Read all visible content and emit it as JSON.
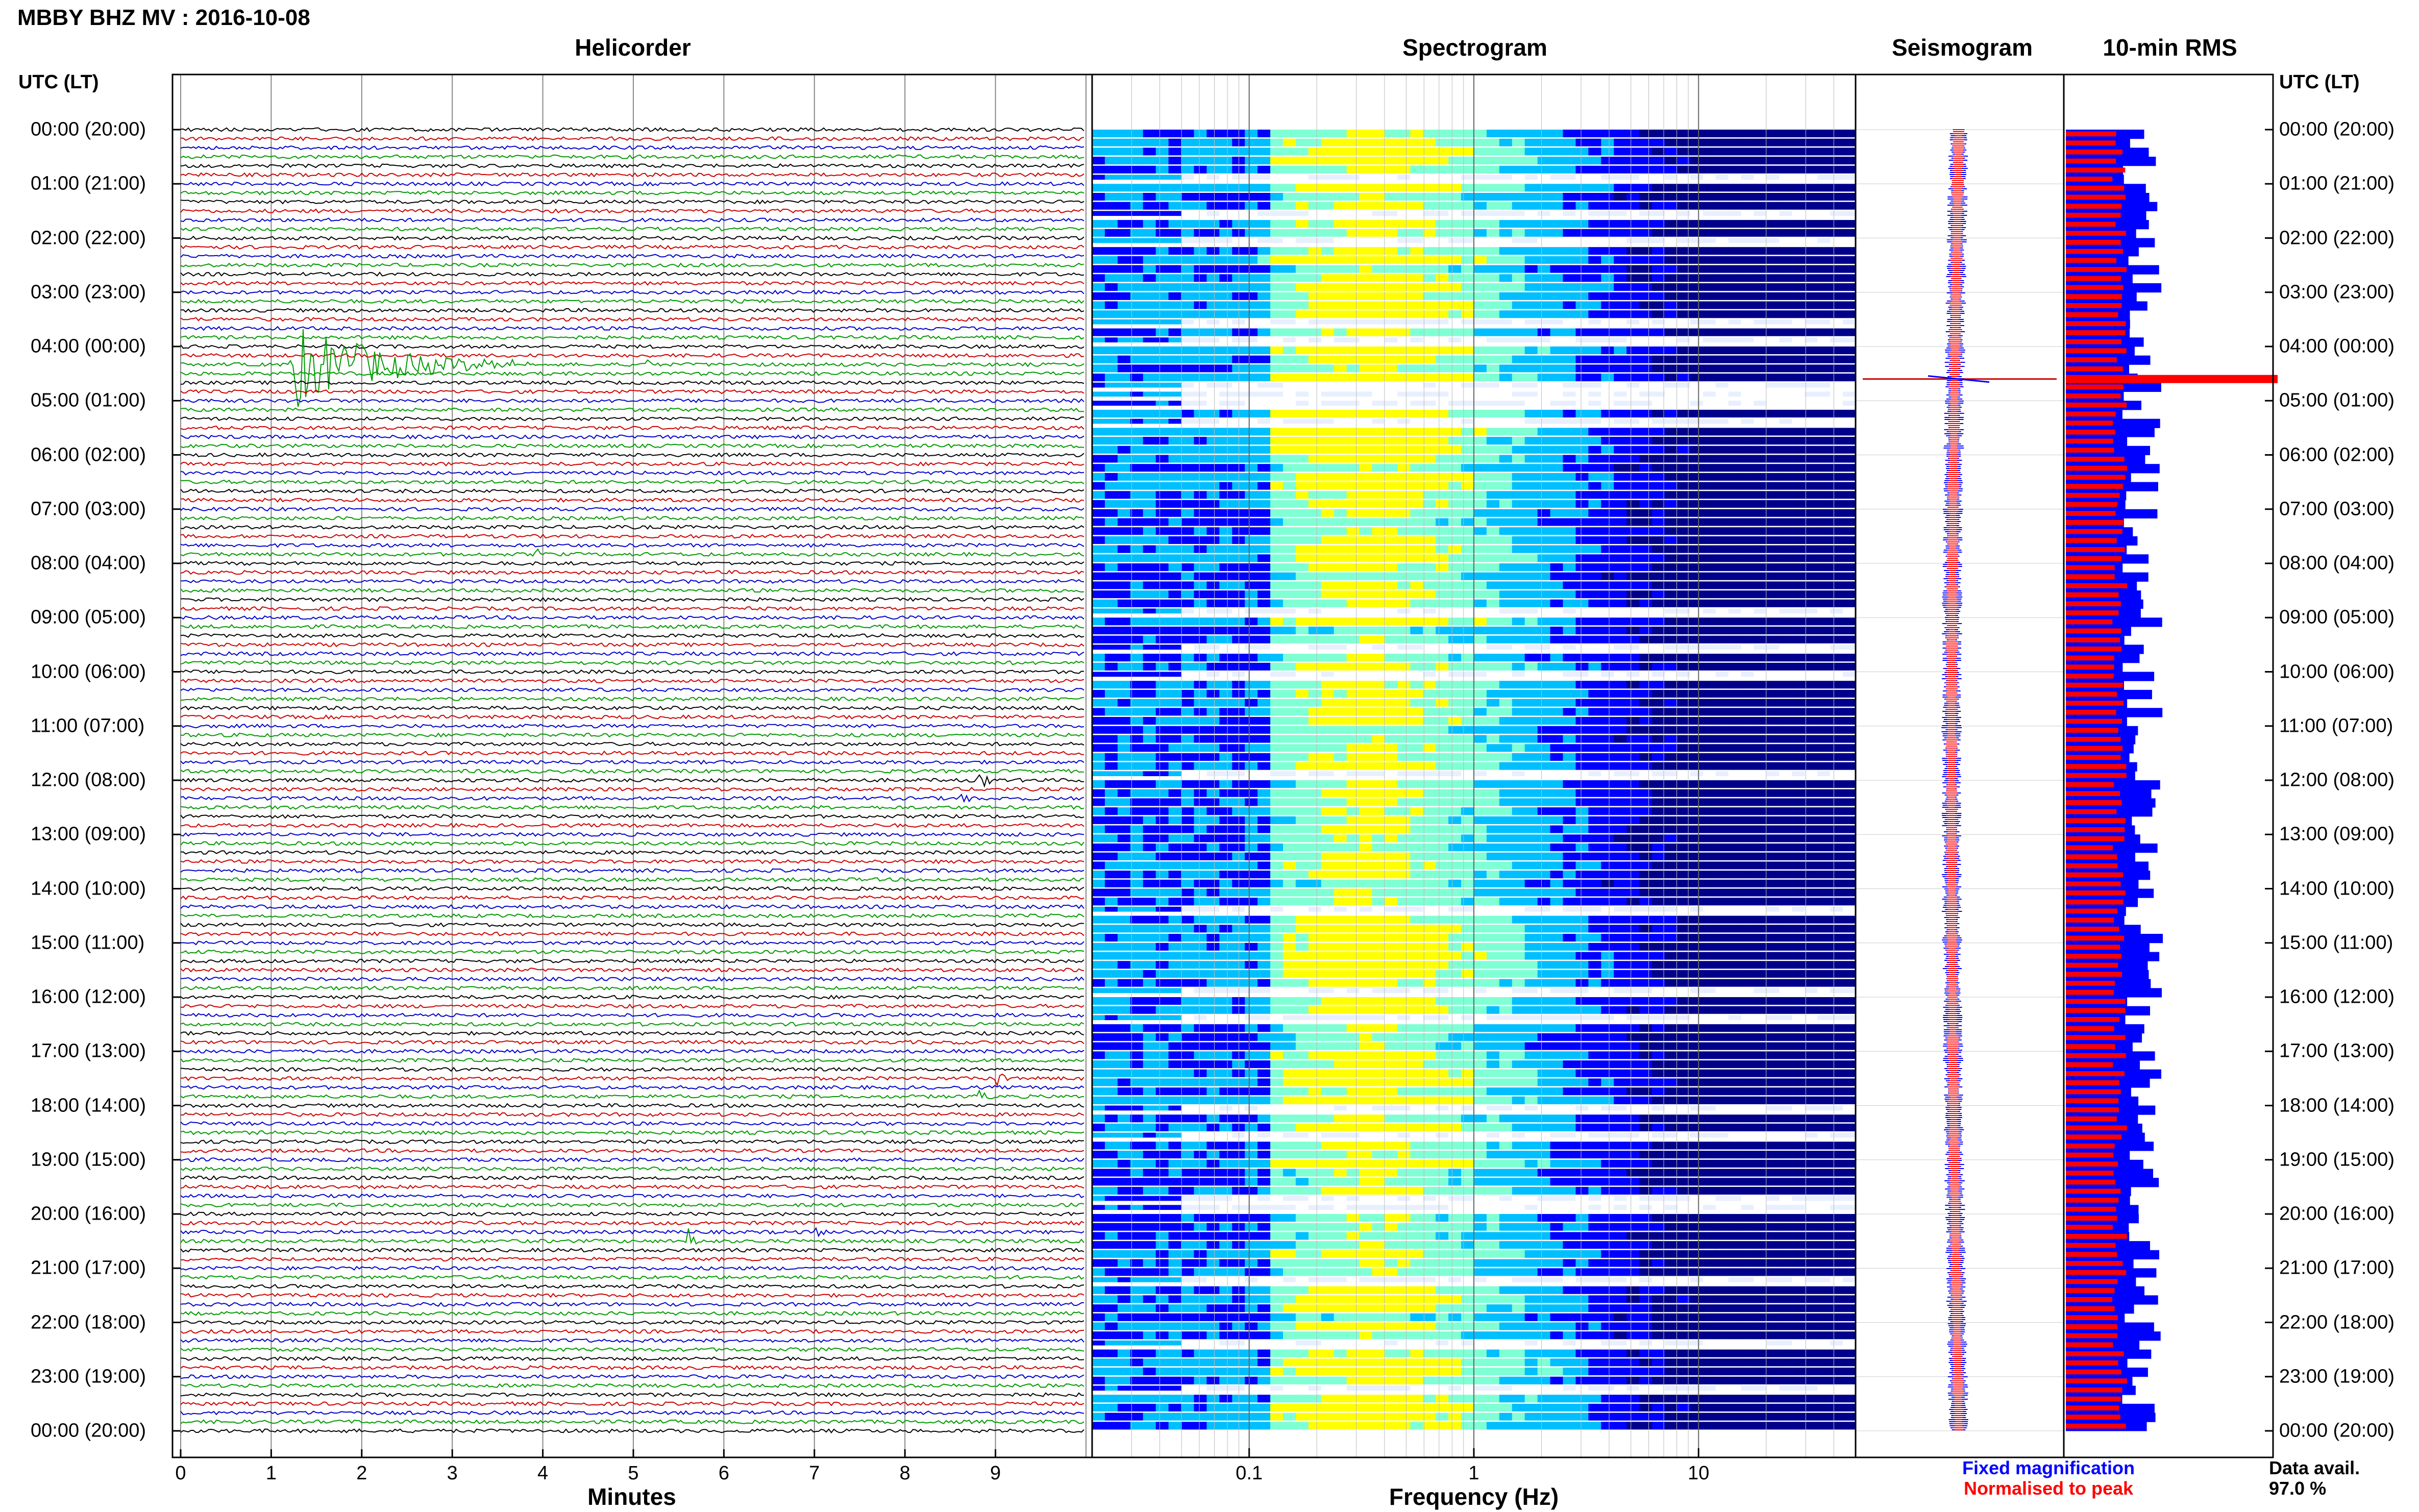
{
  "title": "MBBY BHZ MV : 2016-10-08",
  "panels": {
    "helicorder": "Helicorder",
    "spectrogram": "Spectrogram",
    "seismogram": "Seismogram",
    "rms": "10-min RMS"
  },
  "utc_header_left": "UTC (LT)",
  "utc_header_right": "UTC (LT)",
  "time_labels": [
    "00:00 (20:00)",
    "01:00 (21:00)",
    "02:00 (22:00)",
    "03:00 (23:00)",
    "04:00 (00:00)",
    "05:00 (01:00)",
    "06:00 (02:00)",
    "07:00 (03:00)",
    "08:00 (04:00)",
    "09:00 (05:00)",
    "10:00 (06:00)",
    "11:00 (07:00)",
    "12:00 (08:00)",
    "13:00 (09:00)",
    "14:00 (10:00)",
    "15:00 (11:00)",
    "16:00 (12:00)",
    "17:00 (13:00)",
    "18:00 (14:00)",
    "19:00 (15:00)",
    "20:00 (16:00)",
    "21:00 (17:00)",
    "22:00 (18:00)",
    "23:00 (19:00)",
    "00:00 (20:00)"
  ],
  "x_axis": {
    "minutes_label": "Minutes",
    "minutes_ticks": [
      "0",
      "1",
      "2",
      "3",
      "4",
      "5",
      "6",
      "7",
      "8",
      "9"
    ],
    "frequency_label": "Frequency (Hz)",
    "frequency_ticks": [
      "0.1",
      "1",
      "10"
    ]
  },
  "legend": {
    "fixed": "Fixed magnification",
    "normalised": "Normalised to peak",
    "fixed_color": "#0000ff",
    "normalised_color": "#ff0000"
  },
  "data_avail": {
    "label": "Data avail.",
    "value": "97.0 %"
  },
  "chart_data": {
    "type": "heatmap",
    "trace_colors": [
      "#000000",
      "#cc0000",
      "#0000cc",
      "#009900"
    ],
    "helicorder": {
      "minutes_per_line": 10,
      "lines_per_hour": 6,
      "hours": 24,
      "xlim": [
        0,
        10
      ],
      "events": [
        {
          "hour_line": 26,
          "start_min": 1.2,
          "duration_min": 2.8,
          "amplitude": 9,
          "color": "#009900"
        },
        {
          "hour_line": 26,
          "start_min": 5.1,
          "duration_min": 0.2,
          "amplitude": 2,
          "color": "#009900"
        },
        {
          "hour_line": 47,
          "start_min": 3.9,
          "duration_min": 0.15,
          "amplitude": 2,
          "color": "#000000"
        },
        {
          "hour_line": 72,
          "start_min": 8.8,
          "duration_min": 0.3,
          "amplitude": 2,
          "color": "#0000cc"
        },
        {
          "hour_line": 74,
          "start_min": 8.6,
          "duration_min": 0.2,
          "amplitude": 2,
          "color": "#0000cc"
        },
        {
          "hour_line": 105,
          "start_min": 9.0,
          "duration_min": 0.3,
          "amplitude": 2,
          "color": "#0000cc"
        },
        {
          "hour_line": 107,
          "start_min": 8.8,
          "duration_min": 0.2,
          "amplitude": 2,
          "color": "#009900"
        },
        {
          "hour_line": 123,
          "start_min": 5.6,
          "duration_min": 0.2,
          "amplitude": 3,
          "color": "#009900"
        },
        {
          "hour_line": 122,
          "start_min": 7.0,
          "duration_min": 0.15,
          "amplitude": 2,
          "color": "#0000cc"
        }
      ]
    },
    "spectrogram": {
      "xscale": "log",
      "xlim": [
        0.02,
        50
      ],
      "peak_band_hz": [
        0.15,
        1.0
      ],
      "colormap": [
        "#00008b",
        "#0000ff",
        "#00bfff",
        "#7fffd4",
        "#ffff00"
      ]
    },
    "seismogram": {
      "event_hour": 4.6
    },
    "rms": {
      "interval_min": 10,
      "event_hour": 4.6,
      "fixed_color": "#0000ff",
      "normalised_color": "#ff0000"
    }
  }
}
